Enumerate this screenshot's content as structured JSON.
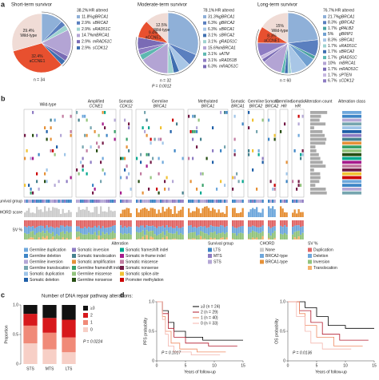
{
  "panels": {
    "a": "a",
    "b": "b",
    "c": "c",
    "d": "d"
  },
  "chart_data": [
    {
      "type": "pie",
      "title": "Short-term survivor",
      "n_label": "n = 34",
      "hr_label": "HR altered",
      "hr_value": 38.2,
      "hr_value_label": "38.2%",
      "categories": [
        "Wild-type",
        "aCCNE1",
        "gBRCA1",
        "sBRCA2",
        "sRAD51C",
        "mBRCA1",
        "mRAD51C",
        "sCDK12"
      ],
      "values": [
        29.4,
        32.4,
        11.8,
        2.9,
        2.9,
        14.7,
        2.9,
        2.9
      ],
      "value_labels": [
        "29.4%",
        "32.4%",
        "11.8%",
        "2.9%",
        "2.9%",
        "14.7%",
        "2.9%",
        "2.9%"
      ],
      "colors": [
        "#f0dcd6",
        "#e8502f",
        "#8fb0d8",
        "#5a7fbf",
        "#9fd3d0",
        "#b3a4d4",
        "#7a6bb5",
        "#3f6fb0"
      ]
    },
    {
      "type": "pie",
      "title": "Moderate-term survivor",
      "n_label": "n = 32",
      "p_label": "P = 0.0012",
      "hr_label": "HR altered",
      "hr_value": 78.1,
      "hr_value_label": "78.1%",
      "categories": [
        "Wild-type",
        "aCCNE1",
        "gBRCA1",
        "gBRCA2",
        "sBRCA1",
        "sBRCA2",
        "gRAD51C",
        "mBRCA1",
        "sATM",
        "sRAD51B",
        "mRAD51C"
      ],
      "values": [
        12.5,
        9.4,
        31.3,
        6.3,
        6.3,
        3.1,
        3.1,
        15.6,
        3.1,
        3.1,
        6.3
      ],
      "value_labels": [
        "12.5%",
        "9.4%",
        "31.3%",
        "6.3%",
        "6.3%",
        "3.1%",
        "3.1%",
        "15.6%",
        "3.1%",
        "3.1%",
        "6.3%"
      ],
      "colors": [
        "#f0dcd6",
        "#e8502f",
        "#8fb0d8",
        "#5a7fbf",
        "#a8c6e6",
        "#3f6fb0",
        "#9fd3d0",
        "#b3a4d4",
        "#5db8b0",
        "#8e7cc3",
        "#7a6bb5"
      ]
    },
    {
      "type": "pie",
      "title": "Long-term survivor",
      "n_label": "n = 60",
      "hr_label": "HR altered",
      "hr_value": 76.7,
      "hr_value_label": "76.7%",
      "categories": [
        "Wild-type",
        "aCCNE1",
        "gBRCA1",
        "gBRCA2",
        "gPALB2",
        "gBRIP1",
        "sBRCA1",
        "sRAD51C",
        "sBRCA2",
        "gRAD51C",
        "mBRCA1",
        "mRAD51C",
        "sPTEN",
        "sCDK12"
      ],
      "values": [
        15,
        8.3,
        21.7,
        8.3,
        1.7,
        5,
        8.3,
        1.7,
        1.7,
        1.7,
        10,
        1.7,
        1.7,
        6.7
      ],
      "value_labels": [
        "15%",
        "8.3%",
        "21.7%",
        "8.3%",
        "1.7%",
        "5%",
        "8.3%",
        "1.7%",
        "1.7%",
        "1.7%",
        "10%",
        "1.7%",
        "1.7%",
        "6.7%"
      ],
      "colors": [
        "#f0dcd6",
        "#e8502f",
        "#8fb0d8",
        "#5a7fbf",
        "#4aa3a0",
        "#6f9fd0",
        "#a8c6e6",
        "#9fd3d0",
        "#3f6fb0",
        "#5db8b0",
        "#b3a4d4",
        "#7a6bb5",
        "#c7b8e0",
        "#8e7cc3"
      ]
    },
    {
      "type": "bar",
      "stacked": true,
      "ylabel": "Proportion",
      "legend_title": "Number of DNA repair pathway alterations:",
      "p_label": "P = 0.0224",
      "categories": [
        "STS",
        "MTS",
        "LTS"
      ],
      "ylim": [
        0,
        1
      ],
      "yticks": [
        0,
        0.5,
        {
          "value": 1,
          "label": "1.0"
        }
      ],
      "series": [
        {
          "name": "0",
          "color": "#f7cfc6",
          "values": [
            0.35,
            0.25,
            0.2
          ]
        },
        {
          "name": "1",
          "color": "#f08a78",
          "values": [
            0.3,
            0.28,
            0.25
          ]
        },
        {
          "name": "2",
          "color": "#d7191c",
          "values": [
            0.2,
            0.25,
            0.3
          ]
        },
        {
          "name": "≥3",
          "color": "#111111",
          "values": [
            0.15,
            0.22,
            0.25
          ]
        }
      ]
    },
    {
      "type": "line",
      "ylabel": "PFS probability",
      "xlabel": "Years of follow-up",
      "p_label": "P = 0.1017",
      "xlim": [
        0,
        15
      ],
      "xticks": [
        0,
        5,
        10,
        15
      ],
      "ylim": [
        0,
        1
      ],
      "yticks": [
        0,
        0.5,
        {
          "value": 1,
          "label": "1.0"
        }
      ],
      "series": [
        {
          "name": "≥3 (n = 24)",
          "color": "#000000",
          "x": [
            0,
            1,
            1,
            2,
            2,
            3,
            3,
            5,
            5,
            8,
            8,
            15
          ],
          "values": [
            1,
            1,
            0.85,
            0.85,
            0.65,
            0.65,
            0.5,
            0.5,
            0.4,
            0.4,
            0.35,
            0.35
          ]
        },
        {
          "name": "2 (n = 29)",
          "color": "#b2182b",
          "x": [
            0,
            1,
            1,
            2,
            2,
            3,
            3,
            5,
            5,
            9,
            9,
            14
          ],
          "values": [
            1,
            1,
            0.8,
            0.8,
            0.55,
            0.55,
            0.4,
            0.4,
            0.3,
            0.3,
            0.25,
            0.25
          ]
        },
        {
          "name": "1 (n = 40)",
          "color": "#ef8a62",
          "x": [
            0,
            1,
            1,
            1.5,
            1.5,
            2.5,
            2.5,
            4,
            4,
            7,
            7,
            12
          ],
          "values": [
            1,
            1,
            0.75,
            0.75,
            0.5,
            0.5,
            0.3,
            0.3,
            0.2,
            0.2,
            0.15,
            0.15
          ]
        },
        {
          "name": "0 (n = 33)",
          "color": "#f4b6ae",
          "x": [
            0,
            1,
            1,
            1.5,
            1.5,
            2,
            2,
            3,
            3,
            6,
            6,
            11
          ],
          "values": [
            1,
            1,
            0.7,
            0.7,
            0.45,
            0.45,
            0.25,
            0.25,
            0.15,
            0.15,
            0.1,
            0.1
          ]
        }
      ]
    },
    {
      "type": "line",
      "ylabel": "OS probability",
      "xlabel": "Years of follow-up",
      "p_label": "P = 0.0136",
      "xlim": [
        0,
        15
      ],
      "xticks": [
        0,
        5,
        10,
        15
      ],
      "ylim": [
        0,
        1
      ],
      "yticks": [
        0,
        0.5,
        {
          "value": 1,
          "label": "1.0"
        }
      ],
      "series": [
        {
          "name": "≥3",
          "color": "#000000",
          "x": [
            0,
            3,
            3,
            5,
            5,
            7,
            7,
            10,
            10,
            15
          ],
          "values": [
            1,
            1,
            0.9,
            0.9,
            0.75,
            0.75,
            0.6,
            0.6,
            0.55,
            0.55
          ]
        },
        {
          "name": "2",
          "color": "#b2182b",
          "x": [
            0,
            2,
            2,
            4,
            4,
            6,
            6,
            9,
            9,
            14
          ],
          "values": [
            1,
            1,
            0.85,
            0.85,
            0.65,
            0.65,
            0.45,
            0.45,
            0.35,
            0.35
          ]
        },
        {
          "name": "1",
          "color": "#ef8a62",
          "x": [
            0,
            2,
            2,
            3,
            3,
            5,
            5,
            8,
            8,
            13
          ],
          "values": [
            1,
            1,
            0.8,
            0.8,
            0.6,
            0.6,
            0.4,
            0.4,
            0.25,
            0.25
          ]
        },
        {
          "name": "0",
          "color": "#f4b6ae",
          "x": [
            0,
            1.5,
            1.5,
            3,
            3,
            4,
            4,
            6,
            6,
            11
          ],
          "values": [
            1,
            1,
            0.75,
            0.75,
            0.5,
            0.5,
            0.3,
            0.3,
            0.2,
            0.2
          ]
        }
      ]
    }
  ],
  "alteration_matrix": {
    "groups": [
      {
        "label": "Wild-type"
      },
      {
        "label": "Amplified",
        "gene": "CCNE1"
      },
      {
        "label": "Somatic",
        "gene": "CDK12"
      },
      {
        "label": "Germline",
        "gene": "BRCA1"
      },
      {
        "label": "Methylated",
        "gene": "BRCA1"
      },
      {
        "label": "Somatic",
        "gene": "BRCA1"
      },
      {
        "label": "Germline",
        "gene": "BRCA2"
      },
      {
        "label": "Somatic",
        "gene": "BRCA2"
      },
      {
        "label": "Germline",
        "gene": "HR"
      },
      {
        "label": "Somatic",
        "gene": "HR"
      }
    ],
    "row_labels": [
      "Survival group",
      "CHORD score",
      "SV %"
    ],
    "side_labels": [
      "Alteration count",
      "Alteration class"
    ],
    "legend": [
      {
        "title": "Alteration",
        "items": [
          {
            "name": "Germline duplication",
            "color": "#6fa8dc"
          },
          {
            "name": "Germline deletion",
            "color": "#3d85c6"
          },
          {
            "name": "Germline inversion",
            "color": "#b4a7d6"
          },
          {
            "name": "Germline translocation",
            "color": "#76a5af"
          },
          {
            "name": "Somatic duplication",
            "color": "#9fc5e8"
          },
          {
            "name": "Somatic deletion",
            "color": "#1f5fa8"
          },
          {
            "name": "Somatic inversion",
            "color": "#8e7cc3"
          },
          {
            "name": "Somatic translocation",
            "color": "#45818e"
          },
          {
            "name": "Somatic amplification",
            "color": "#e69138"
          },
          {
            "name": "Germline frameshift indel",
            "color": "#38a169"
          },
          {
            "name": "Germline missense",
            "color": "#93c47d"
          },
          {
            "name": "Germline nonsense",
            "color": "#274e13"
          },
          {
            "name": "Somatic frameshift indel",
            "color": "#00a88f"
          },
          {
            "name": "Somatic in-frame indel",
            "color": "#a61c8c"
          },
          {
            "name": "Somatic missense",
            "color": "#c27ba0"
          },
          {
            "name": "Somatic nonsense",
            "color": "#741b47"
          },
          {
            "name": "Somatic splice-site",
            "color": "#f1c232"
          },
          {
            "name": "Promoter methylation",
            "color": "#cc0000"
          }
        ]
      },
      {
        "title": "Survival group",
        "items": [
          {
            "name": "LTS",
            "color": "#3d85c6"
          },
          {
            "name": "MTS",
            "color": "#8e7cc3"
          },
          {
            "name": "STS",
            "color": "#b4a7d6"
          }
        ]
      },
      {
        "title": "CHORD",
        "items": [
          {
            "name": "None",
            "color": "#cccccc"
          },
          {
            "name": "BRCA2-type",
            "color": "#6fa8dc"
          },
          {
            "name": "BRCA1-type",
            "color": "#e69138"
          }
        ]
      },
      {
        "title": "SV %",
        "items": [
          {
            "name": "Duplication",
            "color": "#e06666"
          },
          {
            "name": "Deletion",
            "color": "#6fa8dc"
          },
          {
            "name": "Inversion",
            "color": "#93c47d"
          },
          {
            "name": "Translocation",
            "color": "#f6b26b"
          }
        ]
      }
    ]
  }
}
